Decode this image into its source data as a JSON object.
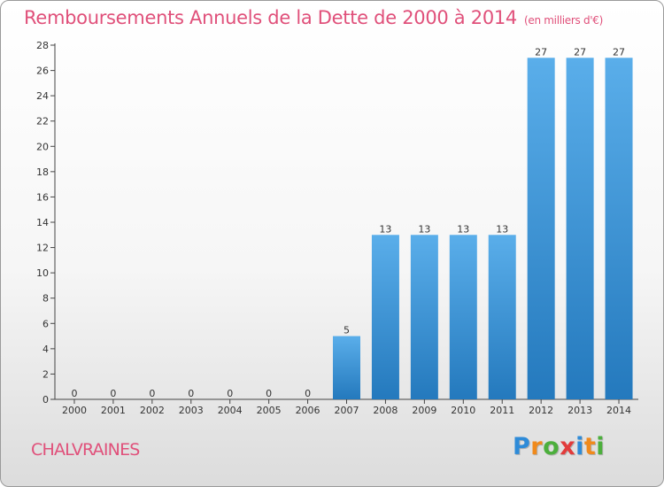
{
  "header": {
    "title": "Remboursements Annuels de la Dette de 2000 à 2014",
    "unit": "(en milliers d'€)"
  },
  "commune": "CHALVRAINES",
  "logo": {
    "text": "Proxiti",
    "letters": [
      {
        "ch": "P",
        "color": "#2e8bd8"
      },
      {
        "ch": "r",
        "color": "#f08a1c"
      },
      {
        "ch": "o",
        "color": "#4caf3c"
      },
      {
        "ch": "x",
        "color": "#e23b3b"
      },
      {
        "ch": "i",
        "color": "#2e8bd8"
      },
      {
        "ch": "t",
        "color": "#f08a1c"
      },
      {
        "ch": "i",
        "color": "#4caf3c"
      }
    ]
  },
  "colors": {
    "bar_top": "#5aaeea",
    "bar_bottom": "#2479bd",
    "accent": "#e0507a"
  },
  "chart_data": {
    "type": "bar",
    "title": "Remboursements Annuels de la Dette de 2000 à 2014",
    "xlabel": "",
    "ylabel": "",
    "categories": [
      "2000",
      "2001",
      "2002",
      "2003",
      "2004",
      "2005",
      "2006",
      "2007",
      "2008",
      "2009",
      "2010",
      "2011",
      "2012",
      "2013",
      "2014"
    ],
    "values": [
      0,
      0,
      0,
      0,
      0,
      0,
      0,
      5,
      13,
      13,
      13,
      13,
      27,
      27,
      27
    ],
    "ylim": [
      0,
      28
    ],
    "yticks": [
      0,
      2,
      4,
      6,
      8,
      10,
      12,
      14,
      16,
      18,
      20,
      22,
      24,
      26,
      28
    ],
    "grid": false,
    "legend": "none"
  }
}
